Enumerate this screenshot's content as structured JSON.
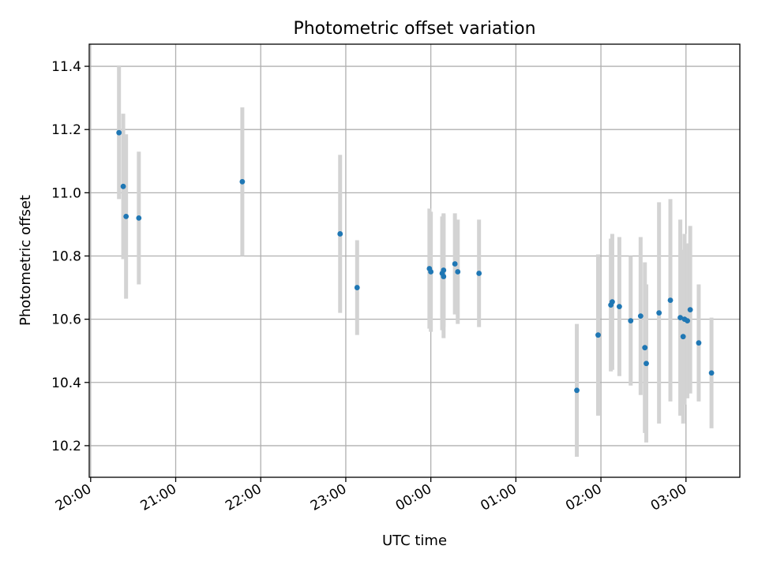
{
  "chart_data": {
    "type": "scatter",
    "title": "Photometric offset variation",
    "xlabel": "UTC time",
    "ylabel": "Photometric offset",
    "x_ticks": [
      "20:00",
      "21:00",
      "22:00",
      "23:00",
      "00:00",
      "01:00",
      "02:00",
      "03:00"
    ],
    "y_ticks": [
      "10.2",
      "10.4",
      "10.6",
      "10.8",
      "11.0",
      "11.2",
      "11.4"
    ],
    "xlim": [
      "19:59",
      "03:38"
    ],
    "ylim": [
      10.1,
      11.47
    ],
    "grid": true,
    "colors": {
      "point": "#1f77b4",
      "errorbar": "#d3d3d3",
      "grid": "#b0b0b0"
    },
    "points": [
      {
        "time": "20:20",
        "y": 11.19,
        "err": 0.21
      },
      {
        "time": "20:23",
        "y": 11.02,
        "err": 0.23
      },
      {
        "time": "20:25",
        "y": 10.925,
        "err": 0.26
      },
      {
        "time": "20:34",
        "y": 10.92,
        "err": 0.21
      },
      {
        "time": "21:47",
        "y": 11.035,
        "err": 0.235
      },
      {
        "time": "22:56",
        "y": 10.87,
        "err": 0.25
      },
      {
        "time": "23:08",
        "y": 10.7,
        "err": 0.15
      },
      {
        "time": "23:59",
        "y": 10.76,
        "err": 0.19
      },
      {
        "time": "24:00",
        "y": 10.75,
        "err": 0.19
      },
      {
        "time": "24:08",
        "y": 10.745,
        "err": 0.18
      },
      {
        "time": "24:09",
        "y": 10.735,
        "err": 0.195
      },
      {
        "time": "24:09",
        "y": 10.755,
        "err": 0.18
      },
      {
        "time": "24:17",
        "y": 10.775,
        "err": 0.16
      },
      {
        "time": "24:19",
        "y": 10.75,
        "err": 0.165
      },
      {
        "time": "24:34",
        "y": 10.745,
        "err": 0.17
      },
      {
        "time": "25:43",
        "y": 10.375,
        "err": 0.21
      },
      {
        "time": "25:58",
        "y": 10.55,
        "err": 0.255
      },
      {
        "time": "26:07",
        "y": 10.645,
        "err": 0.21
      },
      {
        "time": "26:08",
        "y": 10.655,
        "err": 0.215
      },
      {
        "time": "26:13",
        "y": 10.64,
        "err": 0.22
      },
      {
        "time": "26:21",
        "y": 10.595,
        "err": 0.205
      },
      {
        "time": "26:28",
        "y": 10.61,
        "err": 0.25
      },
      {
        "time": "26:31",
        "y": 10.51,
        "err": 0.27
      },
      {
        "time": "26:32",
        "y": 10.46,
        "err": 0.25
      },
      {
        "time": "26:41",
        "y": 10.62,
        "err": 0.35
      },
      {
        "time": "26:49",
        "y": 10.66,
        "err": 0.32
      },
      {
        "time": "26:56",
        "y": 10.605,
        "err": 0.31
      },
      {
        "time": "26:58",
        "y": 10.545,
        "err": 0.275
      },
      {
        "time": "26:59",
        "y": 10.6,
        "err": 0.27
      },
      {
        "time": "27:01",
        "y": 10.595,
        "err": 0.245
      },
      {
        "time": "27:03",
        "y": 10.63,
        "err": 0.265
      },
      {
        "time": "27:09",
        "y": 10.525,
        "err": 0.185
      },
      {
        "time": "27:18",
        "y": 10.43,
        "err": 0.175
      }
    ]
  }
}
